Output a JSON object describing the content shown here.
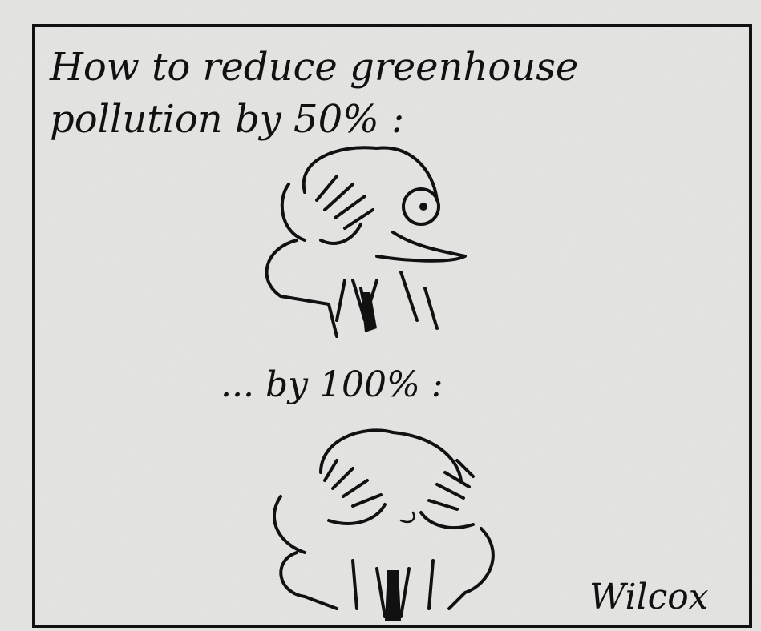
{
  "panel": {
    "caption": [
      "How to reduce greenhouse",
      "pollution by 50% :"
    ],
    "second_caption": "... by 100% :",
    "signature": "Wilcox"
  }
}
